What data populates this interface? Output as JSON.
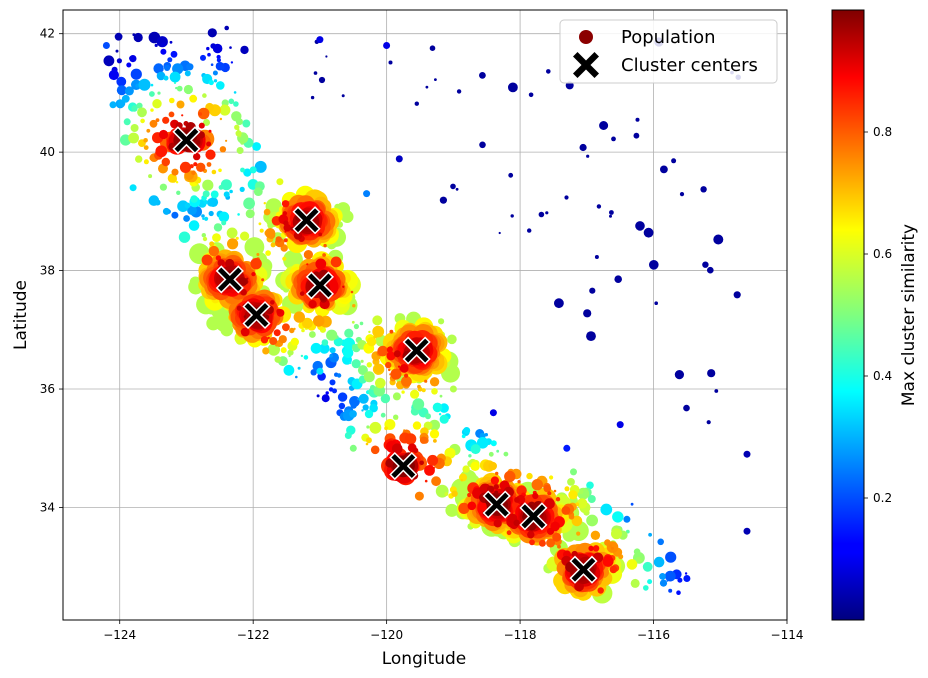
{
  "chart_data": {
    "type": "scatter",
    "title": "",
    "xlabel": "Longitude",
    "ylabel": "Latitude",
    "xlim": [
      -124.85,
      -114.0
    ],
    "ylim": [
      32.1,
      42.4
    ],
    "xticks": [
      -124,
      -122,
      -120,
      -118,
      -116,
      -114
    ],
    "yticks": [
      34,
      36,
      38,
      40,
      42
    ],
    "grid": true,
    "legend": {
      "placement": "top-right",
      "entries": [
        {
          "label": "Population",
          "marker": "circle",
          "color": "#8b0000"
        },
        {
          "label": "Cluster centers",
          "marker": "x",
          "color": "#000000"
        }
      ]
    },
    "colorbar": {
      "label": "Max cluster similarity",
      "colormap": "jet",
      "range": [
        0.0,
        1.0
      ],
      "ticks": [
        0.2,
        0.4,
        0.6,
        0.8
      ]
    },
    "cluster_centers": [
      {
        "x": -123.0,
        "y": 40.2
      },
      {
        "x": -121.2,
        "y": 38.85
      },
      {
        "x": -122.35,
        "y": 37.85
      },
      {
        "x": -121.0,
        "y": 37.75
      },
      {
        "x": -121.95,
        "y": 37.25
      },
      {
        "x": -119.55,
        "y": 36.65
      },
      {
        "x": -119.75,
        "y": 34.7
      },
      {
        "x": -118.35,
        "y": 34.05
      },
      {
        "x": -117.8,
        "y": 33.85
      },
      {
        "x": -117.05,
        "y": 32.95
      }
    ],
    "population_sample": [
      {
        "x": -124.2,
        "y": 41.8,
        "s": 0.2
      },
      {
        "x": -124.1,
        "y": 40.8,
        "s": 0.3
      },
      {
        "x": -123.8,
        "y": 39.4,
        "s": 0.35
      },
      {
        "x": -123.3,
        "y": 39.0,
        "s": 0.3
      },
      {
        "x": -122.7,
        "y": 40.5,
        "s": 0.55
      },
      {
        "x": -122.6,
        "y": 38.4,
        "s": 0.6
      },
      {
        "x": -122.0,
        "y": 39.7,
        "s": 0.4
      },
      {
        "x": -121.6,
        "y": 39.5,
        "s": 0.6
      },
      {
        "x": -120.3,
        "y": 39.3,
        "s": 0.25
      },
      {
        "x": -120.0,
        "y": 41.8,
        "s": 0.1
      },
      {
        "x": -121.0,
        "y": 41.9,
        "s": 0.1
      },
      {
        "x": -121.0,
        "y": 36.3,
        "s": 0.35
      },
      {
        "x": -120.7,
        "y": 35.6,
        "s": 0.2
      },
      {
        "x": -120.5,
        "y": 35.0,
        "s": 0.5
      },
      {
        "x": -119.0,
        "y": 36.0,
        "s": 0.55
      },
      {
        "x": -118.8,
        "y": 35.3,
        "s": 0.35
      },
      {
        "x": -118.4,
        "y": 35.6,
        "s": 0.1
      },
      {
        "x": -117.3,
        "y": 35.0,
        "s": 0.15
      },
      {
        "x": -116.5,
        "y": 35.4,
        "s": 0.1
      },
      {
        "x": -116.4,
        "y": 33.8,
        "s": 0.25
      },
      {
        "x": -115.5,
        "y": 32.8,
        "s": 0.15
      },
      {
        "x": -114.6,
        "y": 33.6,
        "s": 0.05
      },
      {
        "x": -114.6,
        "y": 34.9,
        "s": 0.05
      },
      {
        "x": -117.2,
        "y": 34.6,
        "s": 0.5
      },
      {
        "x": -119.0,
        "y": 34.3,
        "s": 0.65
      }
    ]
  }
}
